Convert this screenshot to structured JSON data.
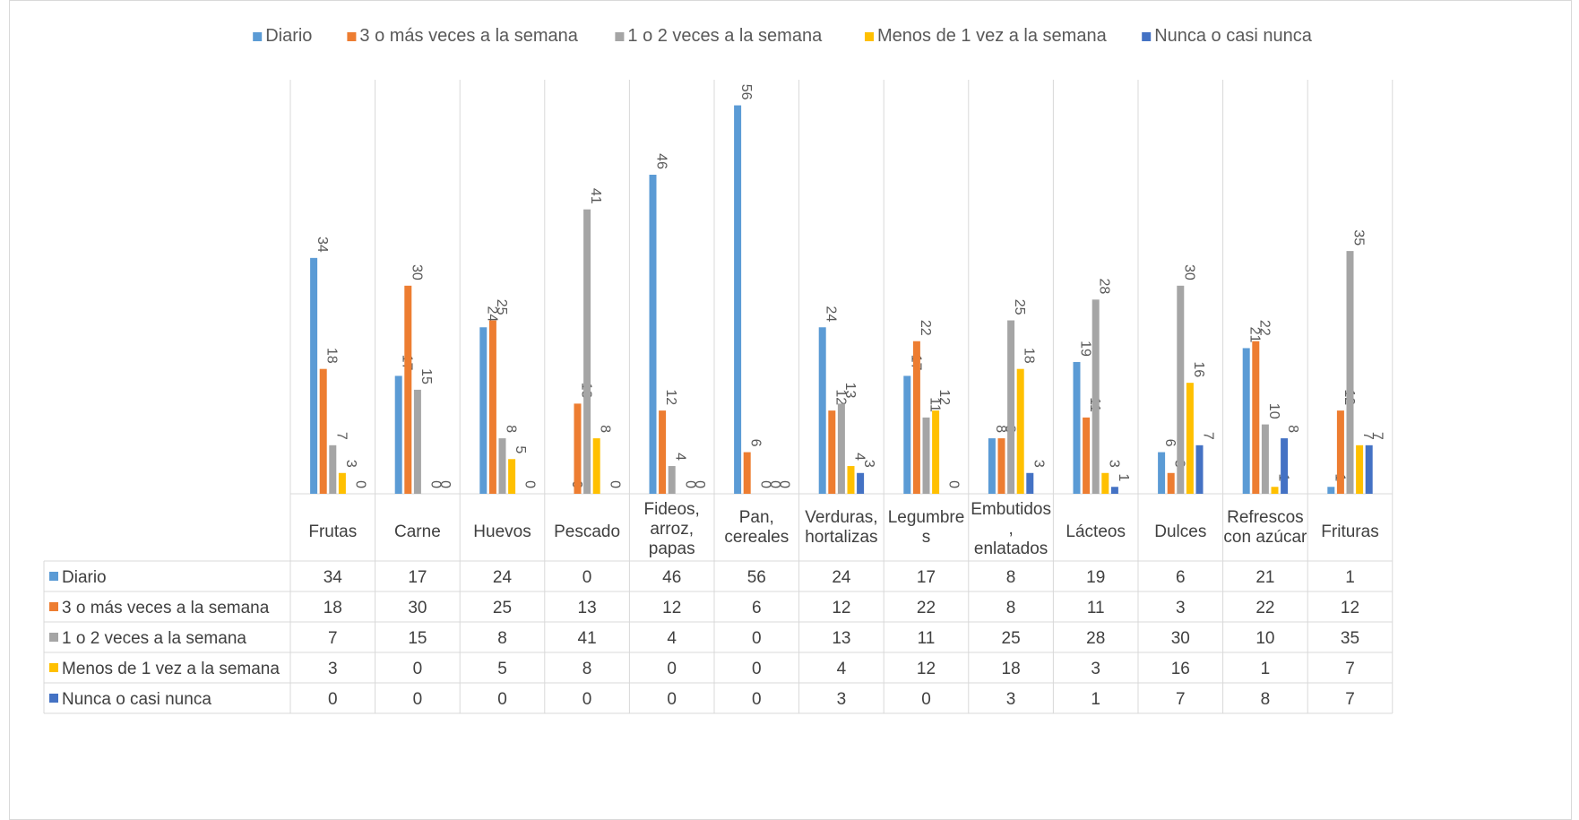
{
  "chart_data": {
    "type": "bar",
    "categories": [
      [
        "Frutas"
      ],
      [
        "Carne"
      ],
      [
        "Huevos"
      ],
      [
        "Pescado"
      ],
      [
        "Fideos,",
        "arroz,",
        "papas"
      ],
      [
        "Pan,",
        "cereales"
      ],
      [
        "Verduras,",
        "hortalizas"
      ],
      [
        "Legumbre",
        "s"
      ],
      [
        "Embutidos",
        ",",
        "enlatados"
      ],
      [
        "Lácteos"
      ],
      [
        "Dulces"
      ],
      [
        "Refrescos",
        "con azúcar"
      ],
      [
        "Frituras"
      ]
    ],
    "series": [
      {
        "name": "Diario",
        "color": "#5B9BD5",
        "values": [
          34,
          17,
          24,
          0,
          46,
          56,
          24,
          17,
          8,
          19,
          6,
          21,
          1
        ]
      },
      {
        "name": "3 o más veces a la semana",
        "color": "#ED7D31",
        "values": [
          18,
          30,
          25,
          13,
          12,
          6,
          12,
          22,
          8,
          11,
          3,
          22,
          12
        ]
      },
      {
        "name": "1 o 2 veces a la semana",
        "color": "#A5A5A5",
        "values": [
          7,
          15,
          8,
          41,
          4,
          0,
          13,
          11,
          25,
          28,
          30,
          10,
          35
        ]
      },
      {
        "name": "Menos de 1 vez a la semana",
        "color": "#FFC000",
        "values": [
          3,
          0,
          5,
          8,
          0,
          0,
          4,
          12,
          18,
          3,
          16,
          1,
          7
        ]
      },
      {
        "name": "Nunca o casi nunca",
        "color": "#4472C4",
        "values": [
          0,
          0,
          0,
          0,
          0,
          0,
          3,
          0,
          3,
          1,
          7,
          8,
          7
        ]
      }
    ],
    "ylim": [
      0,
      56
    ],
    "legend": "top",
    "data_labels": true,
    "data_table": true,
    "vertical_gridlines": true
  }
}
